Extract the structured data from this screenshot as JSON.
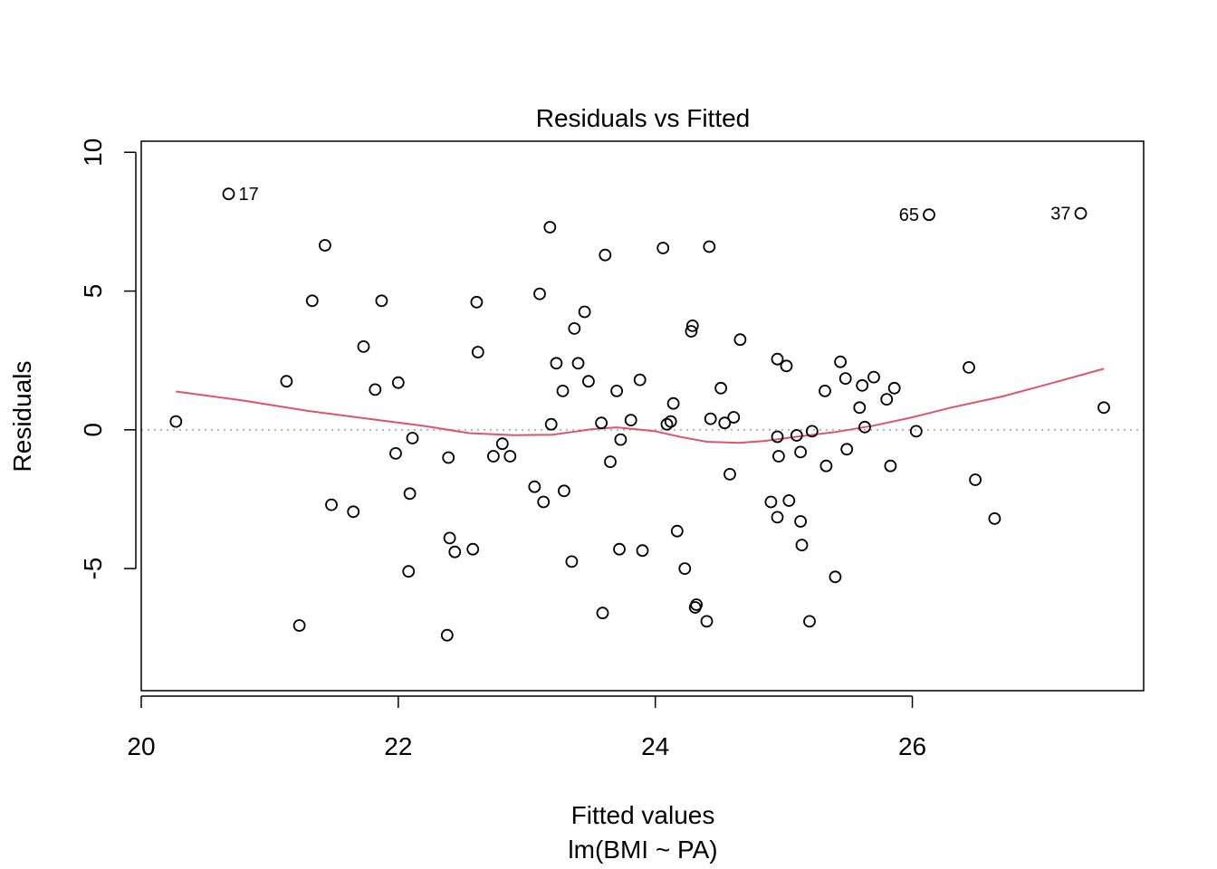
{
  "chart_data": {
    "type": "scatter",
    "title": "Residuals vs Fitted",
    "xlabel": "Fitted values",
    "xlabel_sub": "lm(BMI ~ PA)",
    "ylabel": "Residuals",
    "xlim": [
      20.0,
      27.8
    ],
    "ylim": [
      -9.4,
      10.4
    ],
    "xticks": [
      20,
      22,
      24,
      26
    ],
    "xtick_labels": [
      "20",
      "22",
      "24",
      "26"
    ],
    "yticks": [
      -5,
      0,
      5,
      10
    ],
    "ytick_labels": [
      "-5",
      "0",
      "5",
      "10"
    ],
    "zero_line": {
      "y": 0,
      "style": "dotted",
      "color": "#b3b3b3"
    },
    "points": [
      [
        20.27,
        0.3
      ],
      [
        20.68,
        8.5
      ],
      [
        21.13,
        1.75
      ],
      [
        21.23,
        -7.05
      ],
      [
        21.33,
        4.65
      ],
      [
        21.43,
        6.65
      ],
      [
        21.48,
        -2.7
      ],
      [
        21.65,
        -2.95
      ],
      [
        21.73,
        3.0
      ],
      [
        21.82,
        1.45
      ],
      [
        21.87,
        4.65
      ],
      [
        21.98,
        -0.85
      ],
      [
        22.0,
        1.7
      ],
      [
        22.08,
        -5.1
      ],
      [
        22.09,
        -2.3
      ],
      [
        22.11,
        -0.3
      ],
      [
        22.38,
        -7.4
      ],
      [
        22.39,
        -1.0
      ],
      [
        22.4,
        -3.9
      ],
      [
        22.44,
        -4.4
      ],
      [
        22.58,
        -4.3
      ],
      [
        22.61,
        4.6
      ],
      [
        22.62,
        2.8
      ],
      [
        22.74,
        -0.95
      ],
      [
        22.81,
        -0.5
      ],
      [
        22.87,
        -0.95
      ],
      [
        23.06,
        -2.05
      ],
      [
        23.1,
        4.9
      ],
      [
        23.13,
        -2.6
      ],
      [
        23.18,
        7.3
      ],
      [
        23.19,
        0.2
      ],
      [
        23.23,
        2.4
      ],
      [
        23.28,
        1.4
      ],
      [
        23.29,
        -2.2
      ],
      [
        23.35,
        -4.75
      ],
      [
        23.37,
        3.65
      ],
      [
        23.4,
        2.4
      ],
      [
        23.45,
        4.25
      ],
      [
        23.48,
        1.75
      ],
      [
        23.58,
        0.25
      ],
      [
        23.59,
        -6.6
      ],
      [
        23.61,
        6.3
      ],
      [
        23.65,
        -1.15
      ],
      [
        23.7,
        1.4
      ],
      [
        23.72,
        -4.3
      ],
      [
        23.73,
        -0.35
      ],
      [
        23.81,
        0.35
      ],
      [
        23.88,
        1.8
      ],
      [
        23.9,
        -4.35
      ],
      [
        24.06,
        6.55
      ],
      [
        24.09,
        0.2
      ],
      [
        24.12,
        0.3
      ],
      [
        24.14,
        0.95
      ],
      [
        24.17,
        -3.65
      ],
      [
        24.23,
        -5.0
      ],
      [
        24.28,
        3.55
      ],
      [
        24.29,
        3.75
      ],
      [
        24.31,
        -6.4
      ],
      [
        24.32,
        -6.3
      ],
      [
        24.4,
        -6.9
      ],
      [
        24.42,
        6.6
      ],
      [
        24.43,
        0.4
      ],
      [
        24.51,
        1.5
      ],
      [
        24.54,
        0.25
      ],
      [
        24.58,
        -1.6
      ],
      [
        24.61,
        0.45
      ],
      [
        24.66,
        3.25
      ],
      [
        24.9,
        -2.6
      ],
      [
        24.95,
        -3.15
      ],
      [
        24.95,
        2.55
      ],
      [
        24.95,
        -0.25
      ],
      [
        24.96,
        -0.95
      ],
      [
        25.02,
        2.3
      ],
      [
        25.04,
        -2.55
      ],
      [
        25.1,
        -0.2
      ],
      [
        25.13,
        -0.8
      ],
      [
        25.13,
        -3.3
      ],
      [
        25.14,
        -4.15
      ],
      [
        25.2,
        -6.9
      ],
      [
        25.22,
        -0.05
      ],
      [
        25.32,
        1.4
      ],
      [
        25.33,
        -1.3
      ],
      [
        25.4,
        -5.3
      ],
      [
        25.44,
        2.45
      ],
      [
        25.48,
        1.85
      ],
      [
        25.49,
        -0.7
      ],
      [
        25.59,
        0.8
      ],
      [
        25.61,
        1.6
      ],
      [
        25.63,
        0.1
      ],
      [
        25.7,
        1.9
      ],
      [
        25.8,
        1.1
      ],
      [
        25.83,
        -1.3
      ],
      [
        25.86,
        1.5
      ],
      [
        26.03,
        -0.05
      ],
      [
        26.13,
        7.75
      ],
      [
        26.44,
        2.25
      ],
      [
        26.49,
        -1.8
      ],
      [
        26.64,
        -3.2
      ],
      [
        27.31,
        7.8
      ],
      [
        27.49,
        0.8
      ]
    ],
    "point_labels": [
      {
        "text": "17",
        "x": 20.68,
        "y": 8.5,
        "side": "right"
      },
      {
        "text": "65",
        "x": 26.13,
        "y": 7.75,
        "side": "left"
      },
      {
        "text": "37",
        "x": 27.31,
        "y": 7.8,
        "side": "left"
      }
    ],
    "smooth_line": {
      "color": "#df536b",
      "points": [
        [
          20.27,
          1.38
        ],
        [
          20.8,
          1.05
        ],
        [
          21.3,
          0.68
        ],
        [
          21.8,
          0.38
        ],
        [
          22.2,
          0.14
        ],
        [
          22.55,
          -0.12
        ],
        [
          22.9,
          -0.19
        ],
        [
          23.2,
          -0.18
        ],
        [
          23.5,
          0.02
        ],
        [
          23.7,
          0.09
        ],
        [
          24.0,
          -0.05
        ],
        [
          24.2,
          -0.26
        ],
        [
          24.4,
          -0.43
        ],
        [
          24.65,
          -0.47
        ],
        [
          24.85,
          -0.4
        ],
        [
          25.1,
          -0.25
        ],
        [
          25.4,
          -0.08
        ],
        [
          25.7,
          0.15
        ],
        [
          26.0,
          0.45
        ],
        [
          26.3,
          0.8
        ],
        [
          26.7,
          1.2
        ],
        [
          27.1,
          1.7
        ],
        [
          27.49,
          2.2
        ]
      ]
    }
  }
}
